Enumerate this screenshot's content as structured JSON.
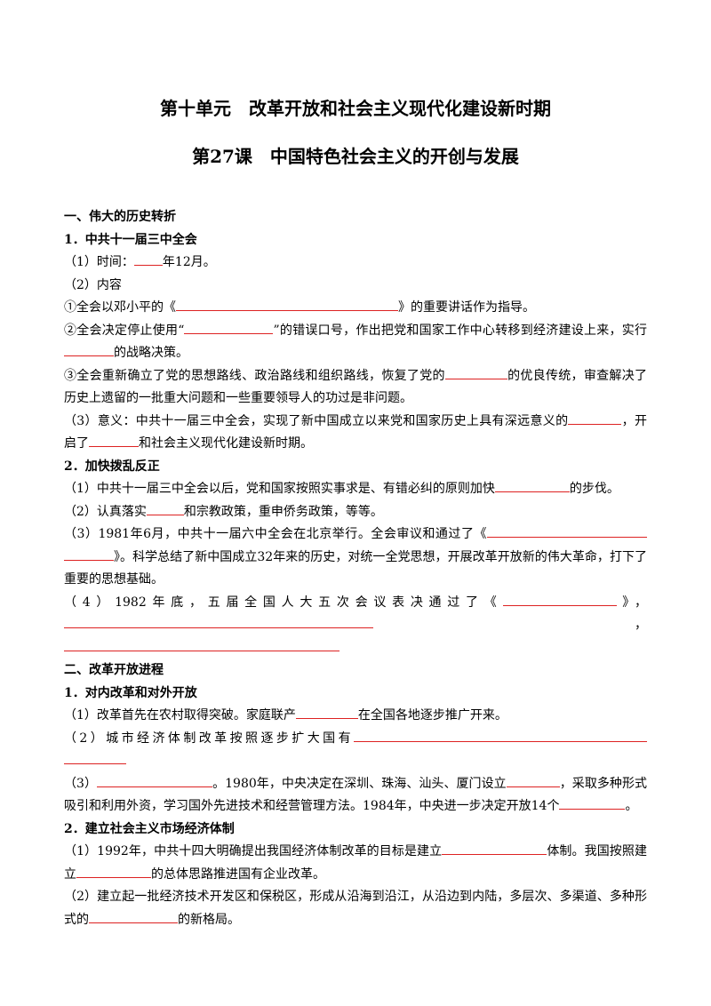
{
  "title": "第十单元　改革开放和社会主义现代化建设新时期",
  "subtitle": "第27课　中国特色社会主义的开创与发展",
  "sections": [
    {
      "heading": "一、伟大的历史转折",
      "paragraphs": [
        {
          "parts": [
            "1．中共十一届三中全会"
          ]
        },
        {
          "parts": [
            "（1）时间：",
            "年12月。"
          ]
        },
        {
          "parts": [
            "（2）内容"
          ]
        },
        {
          "parts": [
            "①全会以邓小平的《",
            "》的重要讲话作为指导。"
          ]
        },
        {
          "parts": [
            "②全会决定停止使用“",
            "”的错误口号，作出把党和国家工作中心转移到经济建设上来，实行",
            "的战略决策。"
          ]
        },
        {
          "parts": [
            "③全会重新确立了党的思想路线、政治路线和组织路线，恢复了党的",
            "的优良传统，审查解决了历史上遗留的一批重大问题和一些重要领导人的功过是非问题。"
          ]
        },
        {
          "parts": [
            "（3）意义：中共十一届三中全会，实现了新中国成立以来党和国家历史上具有深远意义的",
            "，开启了",
            "和社会主义现代化建设新时期。"
          ]
        },
        {
          "parts": [
            "2．加快拨乱反正"
          ]
        },
        {
          "parts": [
            "（1）中共十一届三中全会以后，党和国家按照实事求是、有错必纠的原则加快",
            "的步伐。"
          ]
        },
        {
          "parts": [
            "（2）认真落实",
            "和宗教政策，重申侨务政策，等等。"
          ]
        },
        {
          "parts": [
            "（3）1981年6月，中共十一届六中全会在北京举行。全会审议和通过了《",
            "》。科学总结了新中国成立32年来的历史，对统一全党思想，开展改革开放新的伟大革命，打下了重要的思想基础。"
          ]
        },
        {
          "parts": [
            "（4）1982年底，五届全国人大五次会议表决通过了《",
            "》，",
            "，"
          ]
        }
      ]
    },
    {
      "heading": "二、改革开放进程",
      "paragraphs": [
        {
          "parts": [
            "1．对内改革和对外开放"
          ]
        },
        {
          "parts": [
            "（1）改革首先在农村取得突破。家庭联产",
            "在全国各地逐步推广开来。"
          ]
        },
        {
          "parts": [
            "（2）城市经济体制改革按照逐步扩大国有"
          ]
        },
        {
          "parts": [
            "（3）",
            "。1980年，中央决定在深圳、珠海、汕头、厦门设立",
            "，采取多种形式吸引和利用外资，学习国外先进技术和经营管理方法。1984年，中央进一步决定开放14个",
            "。"
          ]
        },
        {
          "parts": [
            "2．建立社会主义市场经济体制"
          ]
        },
        {
          "parts": [
            "（1）1992年，中共十四大明确提出我国经济体制改革的目标是建立",
            "体制。我国按照建立",
            "的总体思路推进国有企业改革。"
          ]
        },
        {
          "parts": [
            "（2）建立起一批经济技术开发区和保税区，形成从沿海到沿江，从沿边到内陆，多层次、多渠道、多种形式的",
            "的新格局。"
          ]
        }
      ]
    }
  ]
}
